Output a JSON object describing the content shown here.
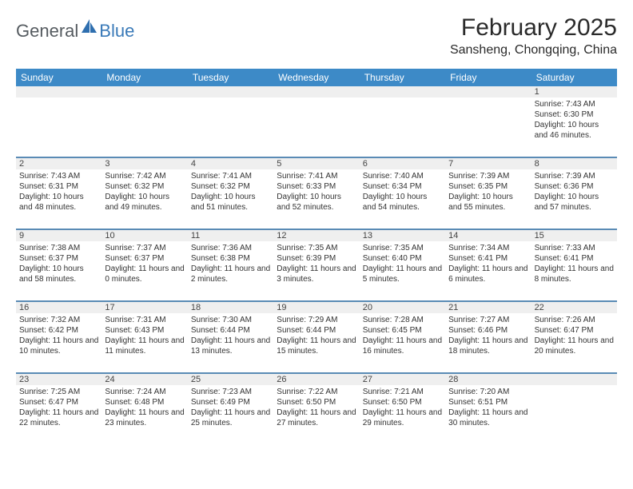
{
  "brand": {
    "part1": "General",
    "part2": "Blue"
  },
  "title": "February 2025",
  "location": "Sansheng, Chongqing, China",
  "dayNames": [
    "Sunday",
    "Monday",
    "Tuesday",
    "Wednesday",
    "Thursday",
    "Friday",
    "Saturday"
  ],
  "colors": {
    "header_bg": "#3d8ac7",
    "separator": "#5a8bb5",
    "daynum_bg": "#efefef",
    "brand_blue": "#3a7ab8"
  },
  "weeks": [
    [
      null,
      null,
      null,
      null,
      null,
      null,
      {
        "n": "1",
        "sunrise": "Sunrise: 7:43 AM",
        "sunset": "Sunset: 6:30 PM",
        "daylight": "Daylight: 10 hours and 46 minutes."
      }
    ],
    [
      {
        "n": "2",
        "sunrise": "Sunrise: 7:43 AM",
        "sunset": "Sunset: 6:31 PM",
        "daylight": "Daylight: 10 hours and 48 minutes."
      },
      {
        "n": "3",
        "sunrise": "Sunrise: 7:42 AM",
        "sunset": "Sunset: 6:32 PM",
        "daylight": "Daylight: 10 hours and 49 minutes."
      },
      {
        "n": "4",
        "sunrise": "Sunrise: 7:41 AM",
        "sunset": "Sunset: 6:32 PM",
        "daylight": "Daylight: 10 hours and 51 minutes."
      },
      {
        "n": "5",
        "sunrise": "Sunrise: 7:41 AM",
        "sunset": "Sunset: 6:33 PM",
        "daylight": "Daylight: 10 hours and 52 minutes."
      },
      {
        "n": "6",
        "sunrise": "Sunrise: 7:40 AM",
        "sunset": "Sunset: 6:34 PM",
        "daylight": "Daylight: 10 hours and 54 minutes."
      },
      {
        "n": "7",
        "sunrise": "Sunrise: 7:39 AM",
        "sunset": "Sunset: 6:35 PM",
        "daylight": "Daylight: 10 hours and 55 minutes."
      },
      {
        "n": "8",
        "sunrise": "Sunrise: 7:39 AM",
        "sunset": "Sunset: 6:36 PM",
        "daylight": "Daylight: 10 hours and 57 minutes."
      }
    ],
    [
      {
        "n": "9",
        "sunrise": "Sunrise: 7:38 AM",
        "sunset": "Sunset: 6:37 PM",
        "daylight": "Daylight: 10 hours and 58 minutes."
      },
      {
        "n": "10",
        "sunrise": "Sunrise: 7:37 AM",
        "sunset": "Sunset: 6:37 PM",
        "daylight": "Daylight: 11 hours and 0 minutes."
      },
      {
        "n": "11",
        "sunrise": "Sunrise: 7:36 AM",
        "sunset": "Sunset: 6:38 PM",
        "daylight": "Daylight: 11 hours and 2 minutes."
      },
      {
        "n": "12",
        "sunrise": "Sunrise: 7:35 AM",
        "sunset": "Sunset: 6:39 PM",
        "daylight": "Daylight: 11 hours and 3 minutes."
      },
      {
        "n": "13",
        "sunrise": "Sunrise: 7:35 AM",
        "sunset": "Sunset: 6:40 PM",
        "daylight": "Daylight: 11 hours and 5 minutes."
      },
      {
        "n": "14",
        "sunrise": "Sunrise: 7:34 AM",
        "sunset": "Sunset: 6:41 PM",
        "daylight": "Daylight: 11 hours and 6 minutes."
      },
      {
        "n": "15",
        "sunrise": "Sunrise: 7:33 AM",
        "sunset": "Sunset: 6:41 PM",
        "daylight": "Daylight: 11 hours and 8 minutes."
      }
    ],
    [
      {
        "n": "16",
        "sunrise": "Sunrise: 7:32 AM",
        "sunset": "Sunset: 6:42 PM",
        "daylight": "Daylight: 11 hours and 10 minutes."
      },
      {
        "n": "17",
        "sunrise": "Sunrise: 7:31 AM",
        "sunset": "Sunset: 6:43 PM",
        "daylight": "Daylight: 11 hours and 11 minutes."
      },
      {
        "n": "18",
        "sunrise": "Sunrise: 7:30 AM",
        "sunset": "Sunset: 6:44 PM",
        "daylight": "Daylight: 11 hours and 13 minutes."
      },
      {
        "n": "19",
        "sunrise": "Sunrise: 7:29 AM",
        "sunset": "Sunset: 6:44 PM",
        "daylight": "Daylight: 11 hours and 15 minutes."
      },
      {
        "n": "20",
        "sunrise": "Sunrise: 7:28 AM",
        "sunset": "Sunset: 6:45 PM",
        "daylight": "Daylight: 11 hours and 16 minutes."
      },
      {
        "n": "21",
        "sunrise": "Sunrise: 7:27 AM",
        "sunset": "Sunset: 6:46 PM",
        "daylight": "Daylight: 11 hours and 18 minutes."
      },
      {
        "n": "22",
        "sunrise": "Sunrise: 7:26 AM",
        "sunset": "Sunset: 6:47 PM",
        "daylight": "Daylight: 11 hours and 20 minutes."
      }
    ],
    [
      {
        "n": "23",
        "sunrise": "Sunrise: 7:25 AM",
        "sunset": "Sunset: 6:47 PM",
        "daylight": "Daylight: 11 hours and 22 minutes."
      },
      {
        "n": "24",
        "sunrise": "Sunrise: 7:24 AM",
        "sunset": "Sunset: 6:48 PM",
        "daylight": "Daylight: 11 hours and 23 minutes."
      },
      {
        "n": "25",
        "sunrise": "Sunrise: 7:23 AM",
        "sunset": "Sunset: 6:49 PM",
        "daylight": "Daylight: 11 hours and 25 minutes."
      },
      {
        "n": "26",
        "sunrise": "Sunrise: 7:22 AM",
        "sunset": "Sunset: 6:50 PM",
        "daylight": "Daylight: 11 hours and 27 minutes."
      },
      {
        "n": "27",
        "sunrise": "Sunrise: 7:21 AM",
        "sunset": "Sunset: 6:50 PM",
        "daylight": "Daylight: 11 hours and 29 minutes."
      },
      {
        "n": "28",
        "sunrise": "Sunrise: 7:20 AM",
        "sunset": "Sunset: 6:51 PM",
        "daylight": "Daylight: 11 hours and 30 minutes."
      },
      null
    ]
  ]
}
